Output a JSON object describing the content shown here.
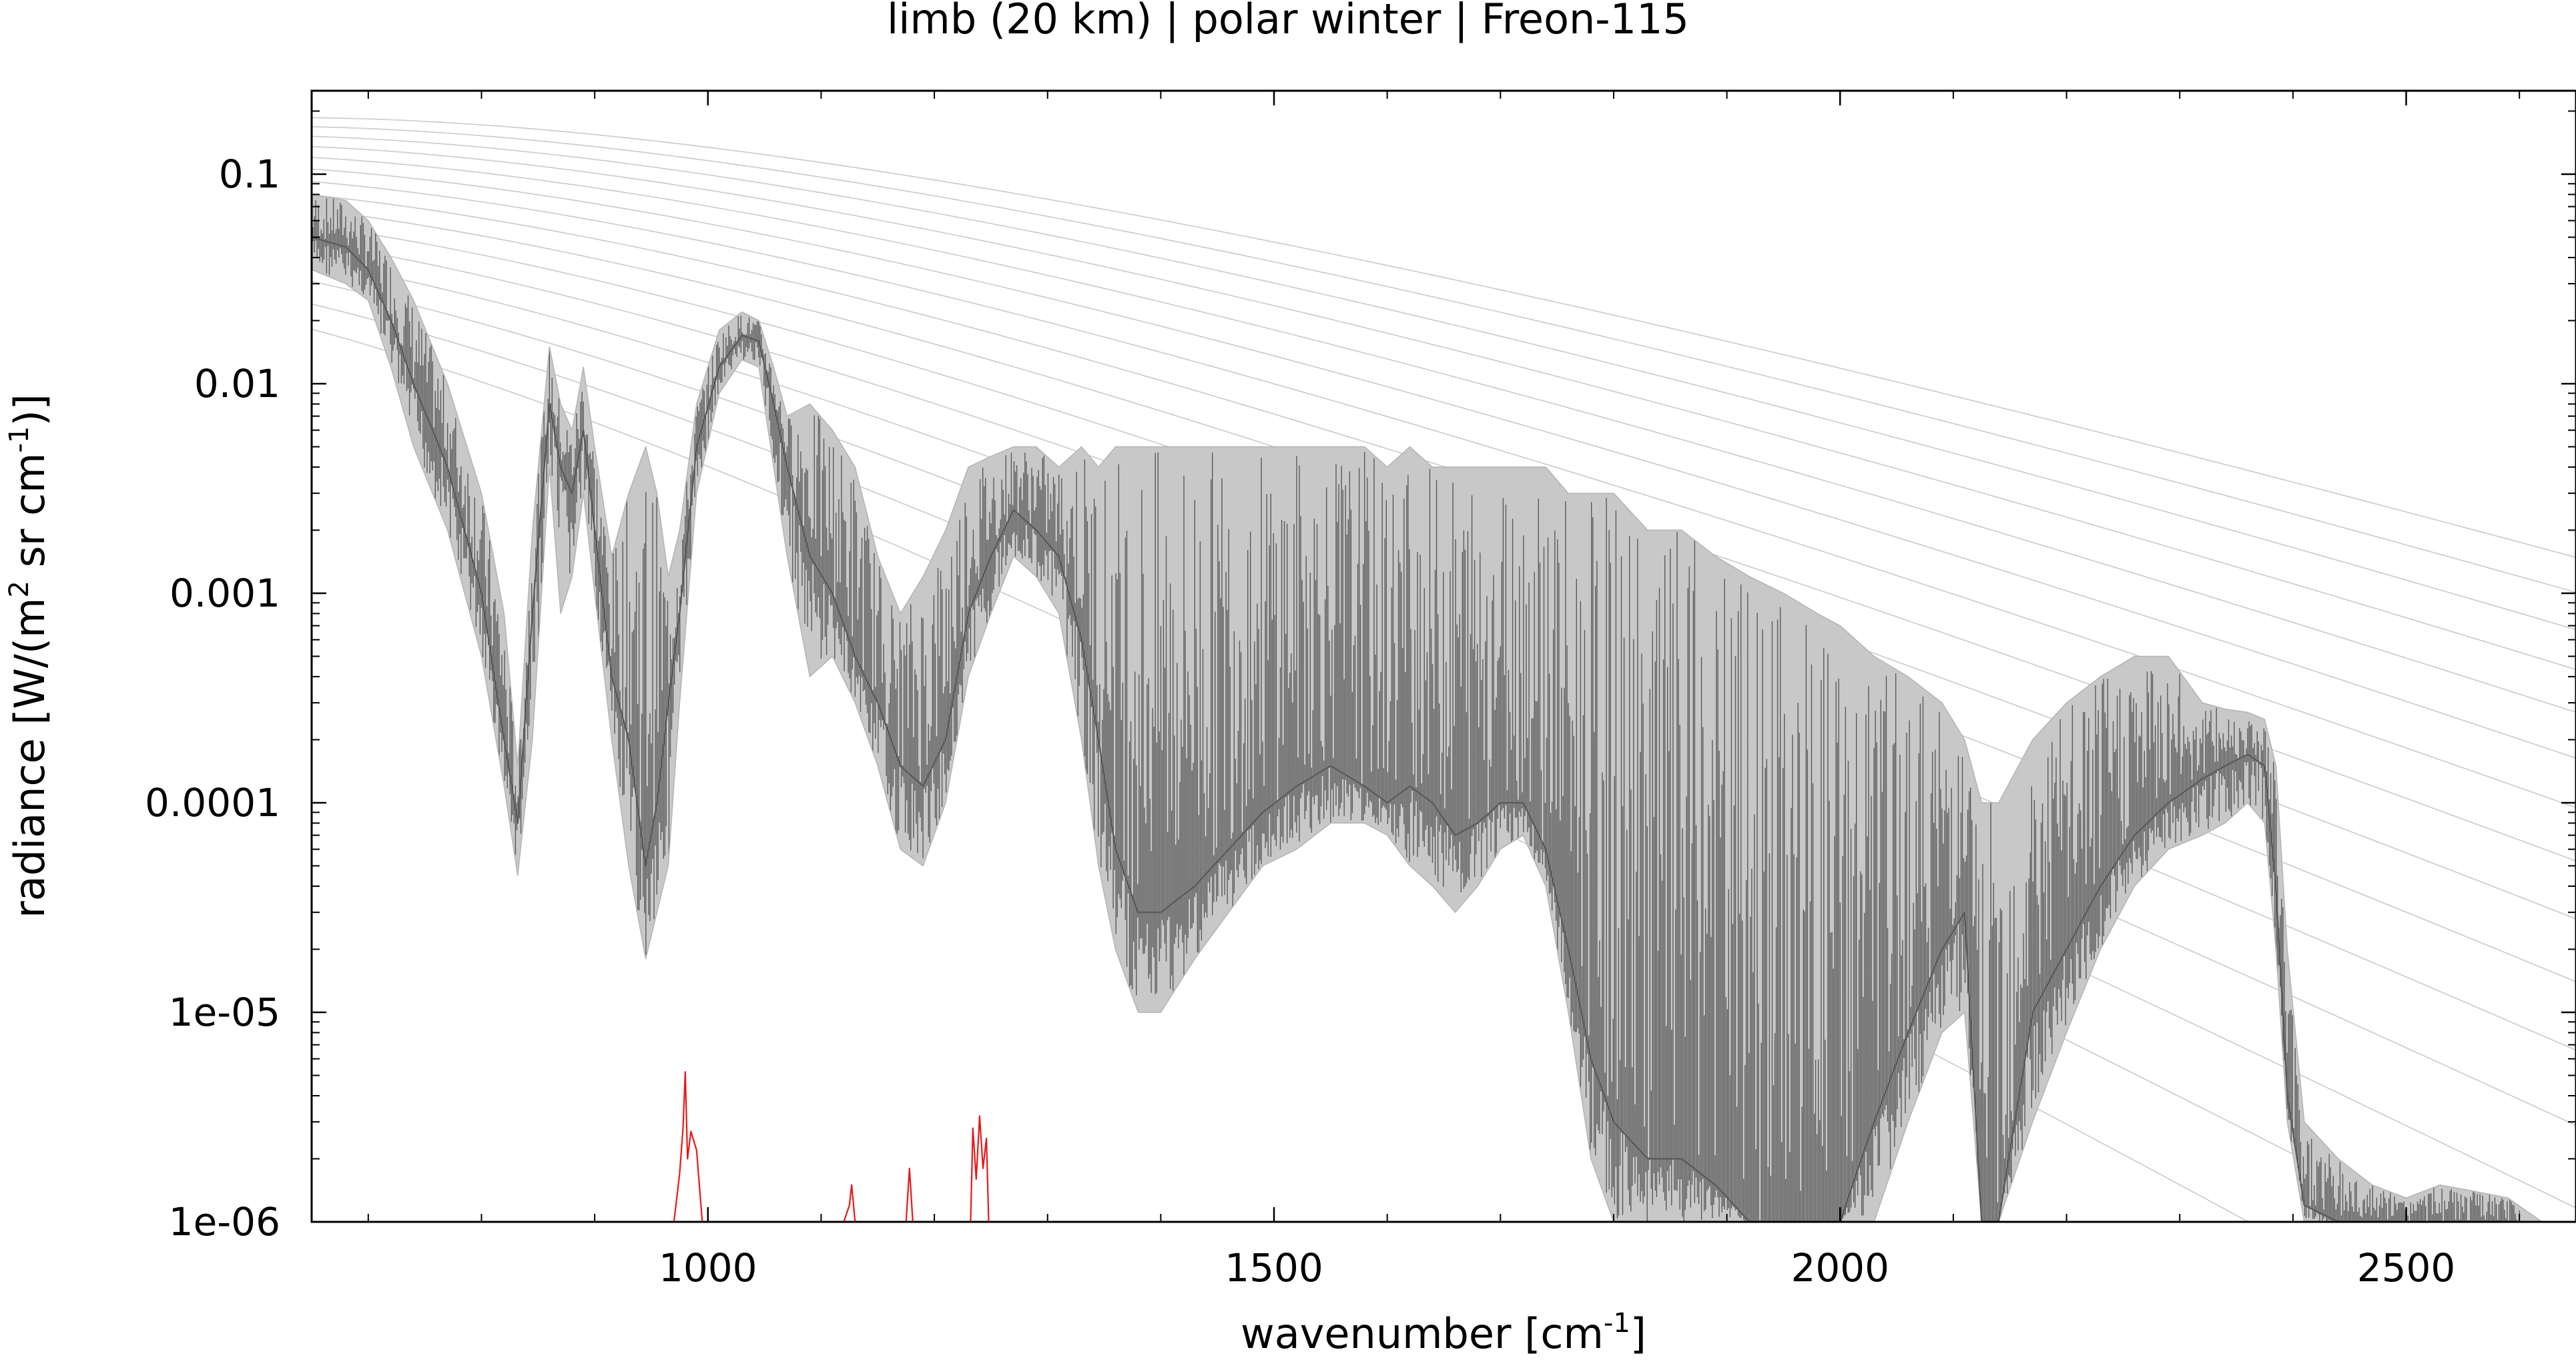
{
  "chart_data": {
    "type": "line",
    "title": "limb (20 km) | polar winter | Freon-115",
    "xlabel": {
      "main": "wavenumber [cm",
      "sup": "-1",
      "tail": "]"
    },
    "ylabel": {
      "main": "radiance [W/(m",
      "sup1": "2",
      "mid": " sr cm",
      "sup2": "-1",
      "tail": ")]"
    },
    "xlim": [
      650,
      2650
    ],
    "ylim": [
      1e-06,
      0.25
    ],
    "yscale": "log",
    "grid": false,
    "legend": "none",
    "x_ticks": [
      {
        "value": 1000,
        "label": "1000"
      },
      {
        "value": 1500,
        "label": "1500"
      },
      {
        "value": 2000,
        "label": "2000"
      },
      {
        "value": 2500,
        "label": "2500"
      }
    ],
    "y_ticks": [
      {
        "value": 0.1,
        "label": "0.1"
      },
      {
        "value": 0.01,
        "label": "0.01"
      },
      {
        "value": 0.001,
        "label": "0.001"
      },
      {
        "value": 0.0001,
        "label": "0.0001"
      },
      {
        "value": 1e-05,
        "label": "1e-05"
      },
      {
        "value": 1e-06,
        "label": "1e-06"
      }
    ],
    "series": [
      {
        "role": "total-spectrum-upper",
        "color": "#b4b4b4",
        "x": [
          650,
          680,
          700,
          720,
          740,
          770,
          800,
          820,
          832,
          845,
          860,
          870,
          880,
          890,
          900,
          915,
          930,
          945,
          955,
          965,
          975,
          990,
          1010,
          1030,
          1045,
          1058,
          1070,
          1090,
          1110,
          1130,
          1150,
          1170,
          1190,
          1210,
          1230,
          1250,
          1270,
          1290,
          1310,
          1330,
          1345,
          1360,
          1380,
          1400,
          1430,
          1460,
          1490,
          1520,
          1550,
          1580,
          1600,
          1620,
          1640,
          1660,
          1680,
          1700,
          1720,
          1740,
          1760,
          1780,
          1800,
          1830,
          1860,
          1890,
          1920,
          1950,
          1980,
          2000,
          2030,
          2060,
          2090,
          2110,
          2125,
          2140,
          2170,
          2200,
          2230,
          2260,
          2290,
          2320,
          2340,
          2360,
          2375,
          2385,
          2395,
          2410,
          2440,
          2470,
          2500,
          2530,
          2560,
          2590,
          2620,
          2650
        ],
        "y": [
          0.08,
          0.075,
          0.06,
          0.04,
          0.025,
          0.01,
          0.003,
          0.0008,
          0.00015,
          0.002,
          0.015,
          0.008,
          0.006,
          0.012,
          0.005,
          0.0015,
          0.003,
          0.005,
          0.003,
          0.0012,
          0.002,
          0.008,
          0.018,
          0.022,
          0.02,
          0.012,
          0.007,
          0.008,
          0.006,
          0.004,
          0.0015,
          0.0008,
          0.0012,
          0.002,
          0.004,
          0.0045,
          0.005,
          0.005,
          0.004,
          0.005,
          0.004,
          0.005,
          0.005,
          0.005,
          0.005,
          0.005,
          0.005,
          0.005,
          0.005,
          0.005,
          0.004,
          0.005,
          0.004,
          0.004,
          0.004,
          0.004,
          0.004,
          0.004,
          0.003,
          0.003,
          0.003,
          0.002,
          0.002,
          0.0015,
          0.0012,
          0.001,
          0.0008,
          0.0007,
          0.0005,
          0.0004,
          0.0003,
          0.0002,
          0.0001,
          0.0001,
          0.0002,
          0.0003,
          0.0004,
          0.0005,
          0.0005,
          0.0003,
          0.00028,
          0.00027,
          0.00025,
          0.00015,
          2e-05,
          3e-06,
          2e-06,
          1.5e-06,
          1.3e-06,
          1.5e-06,
          1.4e-06,
          1.3e-06,
          1e-06,
          1e-06
        ]
      },
      {
        "role": "total-spectrum-lower",
        "color": "#b4b4b4",
        "x": [
          650,
          680,
          700,
          720,
          740,
          770,
          800,
          820,
          832,
          845,
          860,
          870,
          880,
          890,
          900,
          915,
          930,
          945,
          955,
          965,
          975,
          990,
          1010,
          1030,
          1045,
          1058,
          1070,
          1090,
          1110,
          1130,
          1150,
          1170,
          1190,
          1210,
          1230,
          1250,
          1270,
          1290,
          1310,
          1330,
          1345,
          1360,
          1380,
          1400,
          1430,
          1460,
          1490,
          1520,
          1550,
          1580,
          1600,
          1620,
          1640,
          1660,
          1680,
          1700,
          1720,
          1740,
          1760,
          1780,
          1800,
          1830,
          1860,
          1890,
          1920,
          1950,
          1980,
          2000,
          2030,
          2060,
          2090,
          2110,
          2125,
          2140,
          2170,
          2200,
          2230,
          2260,
          2290,
          2320,
          2340,
          2360,
          2375,
          2385,
          2395,
          2410,
          2440,
          2470,
          2500,
          2530,
          2560,
          2590,
          2620,
          2650
        ],
        "y": [
          0.035,
          0.03,
          0.025,
          0.012,
          0.005,
          0.002,
          0.0005,
          0.00012,
          4.5e-05,
          0.0002,
          0.004,
          0.0008,
          0.0012,
          0.003,
          0.001,
          0.0002,
          5e-05,
          1.8e-05,
          3e-05,
          5e-05,
          0.0003,
          0.003,
          0.009,
          0.013,
          0.012,
          0.004,
          0.0015,
          0.0004,
          0.0005,
          0.0003,
          0.00015,
          6e-05,
          5e-05,
          0.0001,
          0.0004,
          0.0008,
          0.0015,
          0.0012,
          0.0008,
          0.0002,
          5e-05,
          2e-05,
          1e-05,
          1e-05,
          1.8e-05,
          3e-05,
          5e-05,
          6e-05,
          8e-05,
          8e-05,
          7e-05,
          5e-05,
          4e-05,
          3e-05,
          4e-05,
          6e-05,
          7e-05,
          4e-05,
          1e-05,
          2e-06,
          1e-06,
          1e-06,
          1e-06,
          1e-06,
          1e-06,
          1e-06,
          1e-06,
          1e-06,
          1e-06,
          3e-06,
          8e-06,
          1e-05,
          1e-06,
          1e-06,
          3e-06,
          8e-06,
          2e-05,
          4e-05,
          6e-05,
          7e-05,
          8e-05,
          0.0001,
          8e-05,
          2e-05,
          3e-06,
          1e-06,
          1e-06,
          1e-06,
          1e-06,
          1e-06,
          1e-06,
          1e-06,
          1e-06,
          1e-06
        ]
      },
      {
        "role": "total-spectrum-core",
        "color": "#595959",
        "x": [
          650,
          680,
          700,
          720,
          740,
          770,
          800,
          820,
          832,
          845,
          860,
          870,
          880,
          890,
          900,
          915,
          930,
          945,
          955,
          965,
          975,
          990,
          1010,
          1030,
          1045,
          1058,
          1070,
          1090,
          1110,
          1130,
          1150,
          1170,
          1190,
          1210,
          1230,
          1250,
          1270,
          1290,
          1310,
          1330,
          1345,
          1360,
          1380,
          1400,
          1430,
          1460,
          1490,
          1520,
          1550,
          1580,
          1600,
          1620,
          1640,
          1660,
          1680,
          1700,
          1720,
          1740,
          1760,
          1780,
          1800,
          1830,
          1860,
          1890,
          1920,
          1950,
          1980,
          2000,
          2030,
          2060,
          2090,
          2110,
          2125,
          2140,
          2170,
          2200,
          2230,
          2260,
          2290,
          2320,
          2340,
          2360,
          2375,
          2385,
          2395,
          2410,
          2440,
          2470,
          2500,
          2530,
          2560,
          2590,
          2620,
          2650
        ],
        "y": [
          0.05,
          0.045,
          0.035,
          0.02,
          0.01,
          0.004,
          0.001,
          0.0002,
          8e-05,
          0.0008,
          0.008,
          0.004,
          0.003,
          0.006,
          0.002,
          0.0004,
          0.0002,
          5e-05,
          0.0001,
          0.0003,
          0.0008,
          0.005,
          0.012,
          0.017,
          0.016,
          0.008,
          0.004,
          0.0015,
          0.001,
          0.0005,
          0.0003,
          0.00015,
          0.00012,
          0.0002,
          0.0008,
          0.0015,
          0.0025,
          0.002,
          0.0015,
          0.0006,
          0.0002,
          6e-05,
          3e-05,
          3e-05,
          4e-05,
          6e-05,
          9e-05,
          0.00012,
          0.00015,
          0.00012,
          0.0001,
          0.00012,
          0.0001,
          7e-05,
          8e-05,
          0.0001,
          0.0001,
          6e-05,
          2e-05,
          6e-06,
          3e-06,
          2e-06,
          2e-06,
          1.5e-06,
          1e-06,
          1e-06,
          1e-06,
          1e-06,
          3e-06,
          8e-06,
          2e-05,
          3e-05,
          1e-06,
          1e-06,
          1e-05,
          2e-05,
          4e-05,
          7e-05,
          0.0001,
          0.00013,
          0.00015,
          0.00017,
          0.00015,
          4e-05,
          4e-06,
          1.2e-06,
          1e-06,
          1e-06,
          1e-06,
          1e-06,
          1e-06,
          1e-06,
          1e-06,
          1e-06
        ]
      },
      {
        "role": "freon-115-contribution",
        "color": "#e8191b",
        "x": [
          970,
          975,
          978,
          980,
          982,
          985,
          990,
          995,
          1120,
          1125,
          1127,
          1130,
          1175,
          1178,
          1181,
          1232,
          1234,
          1237,
          1240,
          1243,
          1246,
          1248
        ],
        "y": [
          1e-06,
          1.7e-06,
          2.8e-06,
          5.2e-06,
          2e-06,
          2.7e-06,
          2.2e-06,
          1e-06,
          1e-06,
          1.2e-06,
          1.5e-06,
          1e-06,
          1e-06,
          1.8e-06,
          1e-06,
          1e-06,
          2.8e-06,
          1.6e-06,
          3.2e-06,
          1.8e-06,
          2.5e-06,
          1e-06
        ]
      }
    ],
    "reference_curves": {
      "color": "#bdbdbd",
      "temperatures_K": [
        320,
        310,
        300,
        290,
        280,
        270,
        260,
        250,
        240,
        230,
        220,
        210,
        200,
        190,
        180
      ]
    }
  }
}
